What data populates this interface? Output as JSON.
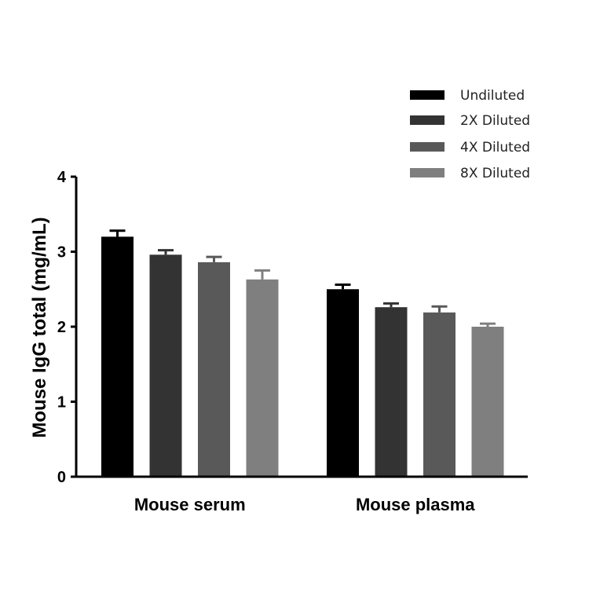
{
  "chart_data": {
    "type": "bar",
    "categories": [
      "Mouse serum",
      "Mouse plasma"
    ],
    "series": [
      {
        "name": "Undiluted",
        "color": "#000000",
        "values": [
          3.2,
          2.5
        ],
        "errors": [
          0.08,
          0.06
        ]
      },
      {
        "name": "2X Diluted",
        "color": "#333333",
        "values": [
          2.96,
          2.26
        ],
        "errors": [
          0.06,
          0.05
        ]
      },
      {
        "name": "4X Diluted",
        "color": "#595959",
        "values": [
          2.86,
          2.19
        ],
        "errors": [
          0.07,
          0.08
        ]
      },
      {
        "name": "8X Diluted",
        "color": "#7f7f7f",
        "values": [
          2.63,
          2.0
        ],
        "errors": [
          0.12,
          0.04
        ]
      }
    ],
    "title": "",
    "xlabel": "",
    "ylabel": "Mouse IgG total (mg/mL)",
    "ylim": [
      0,
      4
    ],
    "yticks": [
      0,
      1,
      2,
      3,
      4
    ],
    "grid": false,
    "legend_position": "top-right"
  }
}
